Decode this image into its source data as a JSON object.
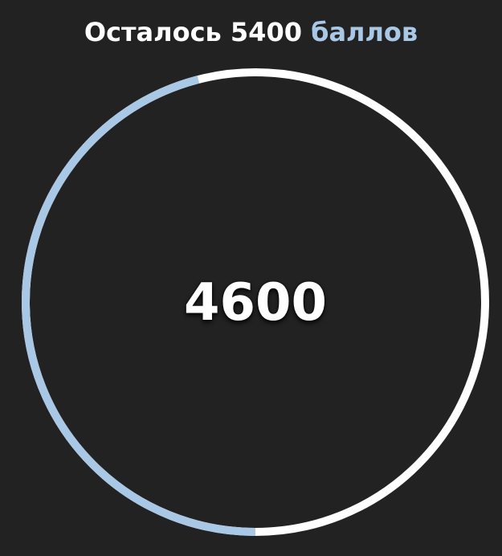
{
  "header": {
    "prefix": "Осталось 5400",
    "accent": "баллов"
  },
  "progress": {
    "value": "4600",
    "fraction": 0.46
  },
  "colors": {
    "background": "#222222",
    "track": "#ffffff",
    "fill": "#a9c8e6",
    "accent_text": "#a9c8e6"
  }
}
